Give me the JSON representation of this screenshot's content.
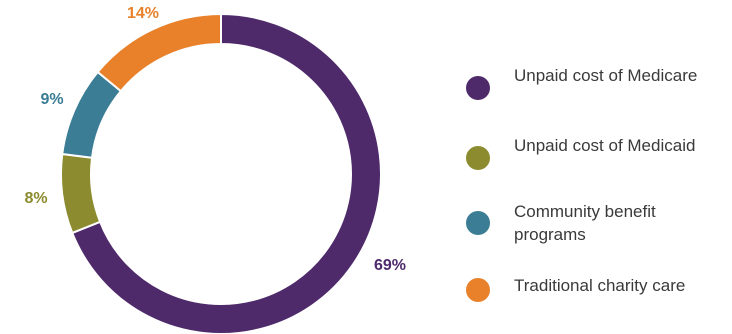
{
  "chart_data": {
    "type": "pie",
    "donut": true,
    "categories": [
      "Unpaid cost of Medicare",
      "Unpaid cost of Medicaid",
      "Community benefit programs",
      "Traditional charity care"
    ],
    "values": [
      69,
      8,
      9,
      14
    ],
    "labels": [
      "69%",
      "8%",
      "9%",
      "14%"
    ],
    "colors": [
      "#4e2a6b",
      "#8c8b2f",
      "#3a7d94",
      "#e8812a"
    ],
    "legend_position": "right"
  }
}
